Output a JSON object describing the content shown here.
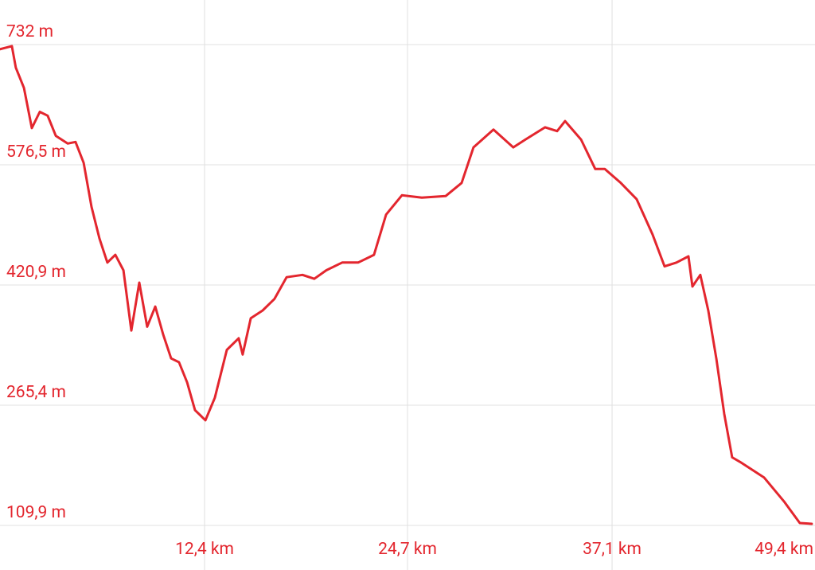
{
  "chart_data": {
    "type": "line",
    "x": [
      0,
      0.72,
      0.96,
      1.45,
      1.93,
      2.41,
      2.89,
      3.38,
      4.1,
      4.58,
      5.07,
      5.55,
      6.03,
      6.51,
      6.99,
      7.48,
      7.96,
      8.44,
      8.92,
      9.41,
      9.89,
      10.37,
      10.85,
      11.34,
      11.82,
      12.45,
      13.02,
      13.75,
      14.47,
      14.71,
      15.2,
      15.92,
      16.64,
      17.37,
      18.33,
      19.05,
      19.78,
      20.74,
      21.71,
      22.67,
      23.4,
      24.36,
      25.57,
      27.01,
      27.98,
      28.7,
      29.91,
      31.11,
      31.84,
      33.04,
      33.77,
      34.25,
      35.22,
      36.08,
      36.66,
      37.63,
      38.59,
      39.56,
      40.28,
      41.0,
      41.73,
      41.97,
      42.45,
      42.93,
      43.42,
      43.9,
      44.38,
      44.86,
      46.31,
      47.52,
      48.48,
      49.2
    ],
    "series": [
      {
        "color": "#e3262e",
        "values": [
          726,
          730,
          702,
          676,
          624,
          645,
          640,
          614,
          604,
          606,
          579,
          522,
          481,
          450,
          460,
          440,
          362,
          424,
          367,
          393,
          357,
          326,
          321,
          295,
          259,
          246,
          275,
          337,
          352,
          331,
          378,
          388,
          403,
          431,
          434,
          429,
          440,
          450,
          450,
          460,
          512,
          537,
          534,
          536,
          553,
          599,
          622,
          599,
          609,
          625,
          620,
          633,
          609,
          571,
          571,
          553,
          532,
          486,
          445,
          450,
          458,
          419,
          434,
          388,
          326,
          254,
          198,
          192,
          172,
          141,
          113,
          112
        ]
      }
    ],
    "xlim": [
      0,
      49.4
    ],
    "ylim": [
      109.9,
      732
    ],
    "xticks": [
      {
        "value": 12.4,
        "label": "12,4 km"
      },
      {
        "value": 24.7,
        "label": "24,7 km"
      },
      {
        "value": 37.1,
        "label": "37,1 km"
      },
      {
        "value": 49.4,
        "label": "49,4 km"
      }
    ],
    "yticks": [
      {
        "value": 732,
        "label": "732 m"
      },
      {
        "value": 576.5,
        "label": "576,5 m"
      },
      {
        "value": 420.9,
        "label": "420,9 m"
      },
      {
        "value": 265.4,
        "label": "265,4 m"
      },
      {
        "value": 109.9,
        "label": "109,9 m"
      }
    ],
    "grid": true,
    "tick_color": "#e3262e"
  }
}
